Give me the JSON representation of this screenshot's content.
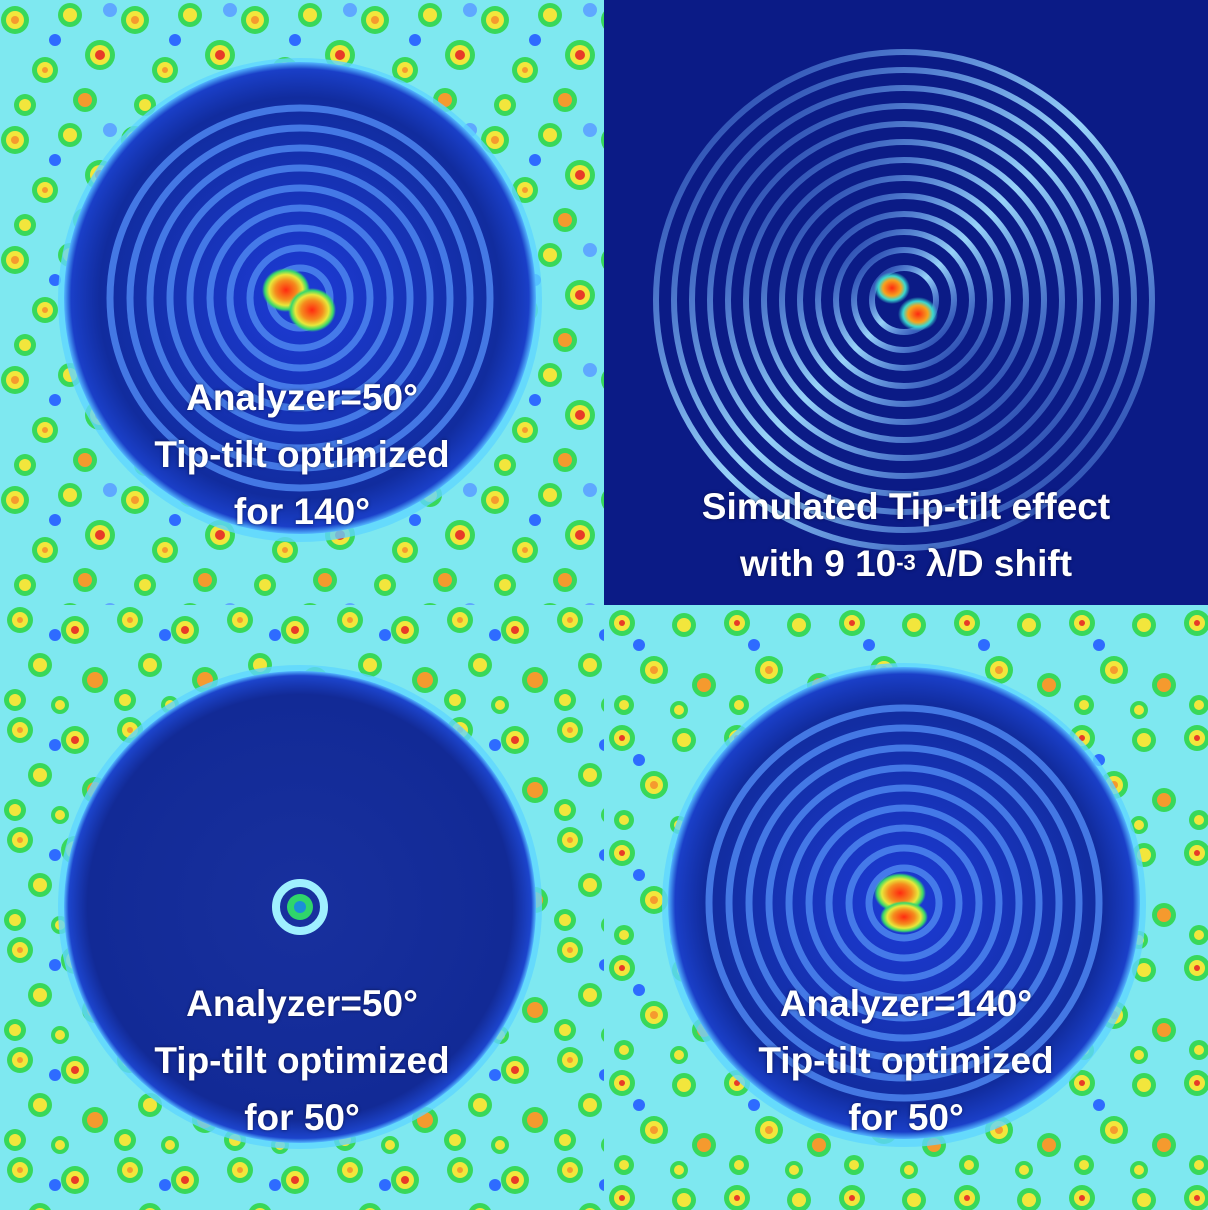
{
  "colors": {
    "background_dark": "#0b1b86",
    "speckle_cyan": "#7ee8f0",
    "speckle_green": "#38d85a",
    "speckle_yellow": "#f2e63c",
    "speckle_orange": "#f59a2e",
    "speckle_red": "#e83a28"
  },
  "panels": [
    {
      "id": "top-left",
      "caption_lines": [
        "Analyzer=50°",
        "Tip-tilt optimized",
        "for 140°"
      ],
      "core": "double-lobe-bright"
    },
    {
      "id": "top-right",
      "caption_line1": "Simulated Tip-tilt effect",
      "caption_line2_prefix": "with 9 10",
      "caption_line2_sup": "-3",
      "caption_line2_suffix": " λ/D shift",
      "core": "double-lobe-simulated"
    },
    {
      "id": "bottom-left",
      "caption_lines": [
        "Analyzer=50°",
        "Tip-tilt optimized",
        "for 50°"
      ],
      "core": "ring-faint"
    },
    {
      "id": "bottom-right",
      "caption_lines": [
        "Analyzer=140°",
        "Tip-tilt optimized",
        "for 50°"
      ],
      "core": "double-lobe-bright"
    }
  ]
}
